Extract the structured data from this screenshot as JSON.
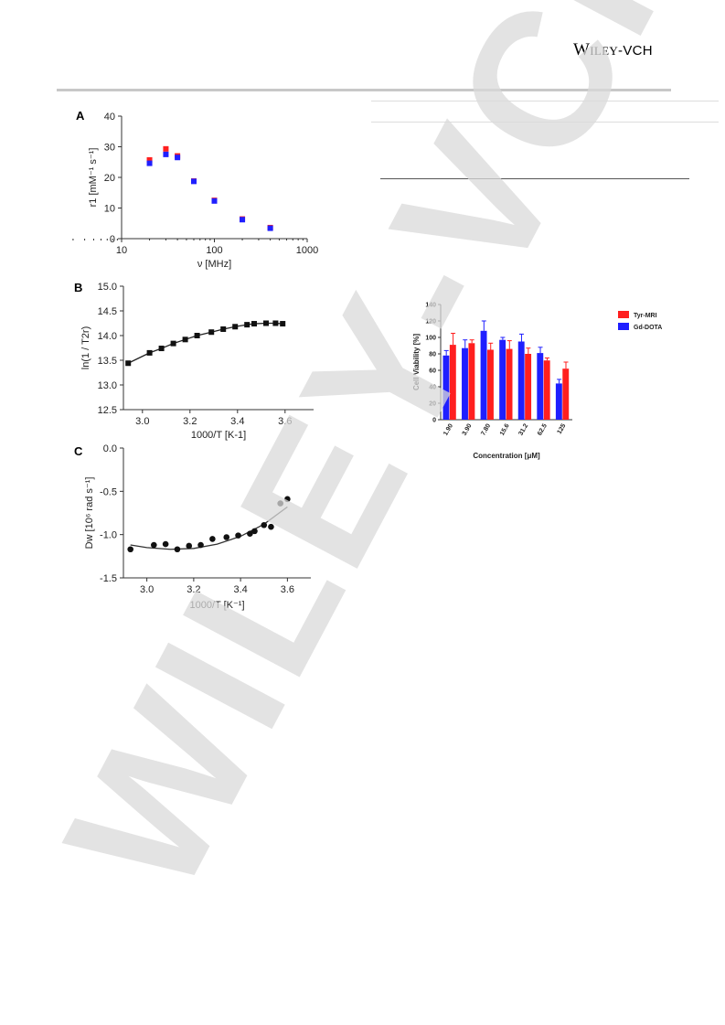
{
  "header": {
    "publisher_part1": "Wiley",
    "publisher_part2": "-VCH"
  },
  "watermark_text": "WILEY-VCH",
  "figures": {
    "A": {
      "letter": "A"
    },
    "B": {
      "letter": "B"
    },
    "C": {
      "letter": "C"
    }
  },
  "colors": {
    "tyr": "#ff1f1f",
    "gd": "#1f1fff",
    "rule": "#c8c8c8",
    "watermark": "#d9d9d9"
  },
  "chart_data": [
    {
      "id": "A",
      "type": "scatter",
      "xlabel": "ν [MHz]",
      "ylabel": "r1 [mM⁻¹ s⁻¹]",
      "xscale": "log",
      "xlim": [
        10,
        1000
      ],
      "ylim": [
        0,
        40
      ],
      "xticks": [
        "10",
        "100",
        "1000"
      ],
      "yticks": [
        "0",
        "10",
        "20",
        "30",
        "40"
      ],
      "series": [
        {
          "color": "#ff1f1f",
          "x": [
            20,
            30,
            40,
            60,
            100,
            200,
            400
          ],
          "y": [
            25.7,
            29.3,
            27.0,
            18.8,
            12.5,
            6.4,
            3.6
          ]
        },
        {
          "color": "#1f1fff",
          "x": [
            20,
            30,
            40,
            60,
            100,
            200,
            400
          ],
          "y": [
            24.6,
            27.5,
            26.5,
            18.7,
            12.3,
            6.2,
            3.4
          ]
        }
      ]
    },
    {
      "id": "B",
      "type": "line",
      "xlabel": "1000/T [K-1]",
      "ylabel": "ln(1 / T2r)",
      "xlim": [
        2.92,
        3.72
      ],
      "ylim": [
        12.5,
        15.0
      ],
      "xticks": [
        "3.0",
        "3.2",
        "3.4",
        "3.6"
      ],
      "yticks": [
        "12.5",
        "13.0",
        "13.5",
        "14.0",
        "14.5",
        "15.0"
      ],
      "x": [
        2.94,
        3.03,
        3.08,
        3.13,
        3.18,
        3.23,
        3.29,
        3.34,
        3.39,
        3.44,
        3.47,
        3.52,
        3.56,
        3.59
      ],
      "y": [
        13.44,
        13.65,
        13.74,
        13.84,
        13.92,
        14.0,
        14.07,
        14.13,
        14.18,
        14.22,
        14.24,
        14.25,
        14.25,
        14.24
      ]
    },
    {
      "id": "C",
      "type": "scatter",
      "xlabel": "1000/T [K⁻¹]",
      "ylabel": "Dw [10⁶ rad s⁻¹]",
      "xlim": [
        2.9,
        3.7
      ],
      "ylim": [
        -1.5,
        0.0
      ],
      "xticks": [
        "3.0",
        "3.2",
        "3.4",
        "3.6"
      ],
      "yticks": [
        "-1.5",
        "-1.0",
        "-0.5",
        "0.0"
      ],
      "x": [
        2.93,
        3.03,
        3.08,
        3.13,
        3.18,
        3.23,
        3.28,
        3.34,
        3.39,
        3.44,
        3.46,
        3.5,
        3.53,
        3.57,
        3.6
      ],
      "y": [
        -1.17,
        -1.12,
        -1.11,
        -1.17,
        -1.13,
        -1.12,
        -1.05,
        -1.03,
        -1.01,
        -0.99,
        -0.96,
        -0.89,
        -0.91,
        -0.64,
        -0.59
      ],
      "fit": {
        "x": [
          2.93,
          3.0,
          3.1,
          3.2,
          3.3,
          3.4,
          3.5,
          3.6
        ],
        "y": [
          -1.12,
          -1.15,
          -1.17,
          -1.16,
          -1.11,
          -1.02,
          -0.88,
          -0.68
        ]
      }
    },
    {
      "id": "D",
      "type": "bar",
      "xlabel": "Concentration [μM]",
      "ylabel": "Cell Viability [%]",
      "ylim": [
        0,
        140
      ],
      "yticks": [
        "0",
        "20",
        "40",
        "60",
        "80",
        "100",
        "120",
        "140"
      ],
      "categories": [
        "1.90",
        "3.90",
        "7.80",
        "15.6",
        "31.2",
        "62.5",
        "125"
      ],
      "series": [
        {
          "name": "Gd-DOTA",
          "color": "#1f1fff",
          "values": [
            78,
            87,
            108,
            97,
            95,
            81,
            44
          ],
          "errors": [
            6,
            10,
            12,
            3,
            9,
            7,
            5
          ]
        },
        {
          "name": "Tyr-MRI",
          "color": "#ff1f1f",
          "values": [
            91,
            93,
            85,
            86,
            80,
            72,
            62
          ],
          "errors": [
            14,
            4,
            8,
            10,
            7,
            3,
            8
          ]
        }
      ],
      "legend": [
        "Tyr-MRI",
        "Gd-DOTA"
      ]
    }
  ]
}
